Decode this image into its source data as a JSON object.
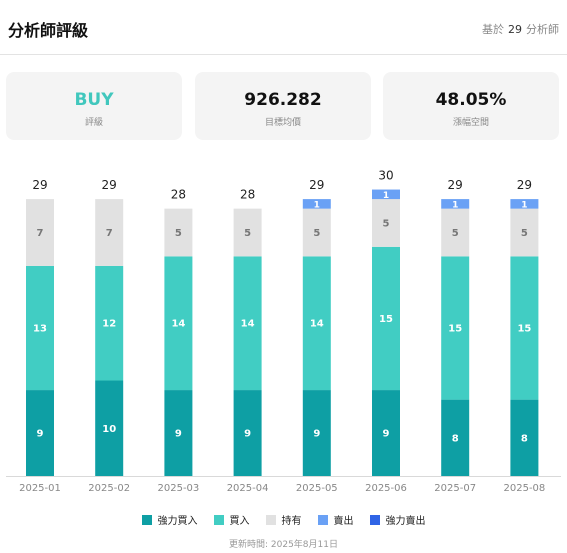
{
  "header": {
    "title": "分析師評級",
    "basis_prefix": "基於",
    "basis_count": "29",
    "basis_suffix": "分析師"
  },
  "cards": [
    {
      "value": "BUY",
      "label": "評級"
    },
    {
      "value": "926.282",
      "label": "目標均價"
    },
    {
      "value": "48.05%",
      "label": "漲幅空間"
    }
  ],
  "chart_data": {
    "type": "bar",
    "stacked": true,
    "categories": [
      "2025-01",
      "2025-02",
      "2025-03",
      "2025-04",
      "2025-05",
      "2025-06",
      "2025-07",
      "2025-08"
    ],
    "totals": [
      29,
      29,
      28,
      28,
      29,
      30,
      29,
      29
    ],
    "series": [
      {
        "name": "強力買入",
        "color": "#0e9fa4",
        "values": [
          9,
          10,
          9,
          9,
          9,
          9,
          8,
          8
        ]
      },
      {
        "name": "買入",
        "color": "#41cdc3",
        "values": [
          13,
          12,
          14,
          14,
          14,
          15,
          15,
          15
        ]
      },
      {
        "name": "持有",
        "color": "#e1e1e1",
        "values": [
          7,
          7,
          5,
          5,
          5,
          5,
          5,
          5
        ]
      },
      {
        "name": "賣出",
        "color": "#6aa1f5",
        "values": [
          0,
          0,
          0,
          0,
          1,
          1,
          1,
          1
        ]
      },
      {
        "name": "強力賣出",
        "color": "#2f64e6",
        "values": [
          0,
          0,
          0,
          0,
          0,
          0,
          0,
          0
        ]
      }
    ],
    "ylim": [
      0,
      31
    ],
    "grid": false,
    "legend_position": "bottom"
  },
  "footer": {
    "updated": "更新時間: 2025年8月11日"
  }
}
